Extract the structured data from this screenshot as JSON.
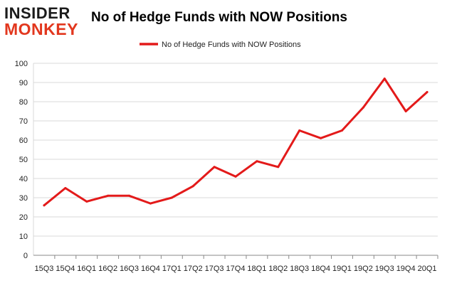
{
  "logo": {
    "line1": "INSIDER",
    "line2": "MONKEY"
  },
  "colors": {
    "series": "#e31a1a",
    "grid": "#d9d9d9",
    "axis": "#888888",
    "logo_dark": "#1b1b1b",
    "logo_red": "#e2371e"
  },
  "chart_data": {
    "type": "line",
    "title": "No of Hedge Funds with NOW Positions",
    "xlabel": "",
    "ylabel": "",
    "ylim": [
      0,
      100
    ],
    "yticks": [
      0,
      10,
      20,
      30,
      40,
      50,
      60,
      70,
      80,
      90,
      100
    ],
    "grid": true,
    "legend_position": "top-center",
    "categories": [
      "15Q3",
      "15Q4",
      "16Q1",
      "16Q2",
      "16Q3",
      "16Q4",
      "17Q1",
      "17Q2",
      "17Q3",
      "17Q4",
      "18Q1",
      "18Q2",
      "18Q3",
      "18Q4",
      "19Q1",
      "19Q2",
      "19Q3",
      "19Q4",
      "20Q1"
    ],
    "series": [
      {
        "name": "No of Hedge Funds with NOW Positions",
        "values": [
          26,
          35,
          28,
          31,
          31,
          27,
          30,
          36,
          46,
          41,
          49,
          46,
          65,
          61,
          65,
          77,
          92,
          75,
          85
        ]
      }
    ]
  }
}
